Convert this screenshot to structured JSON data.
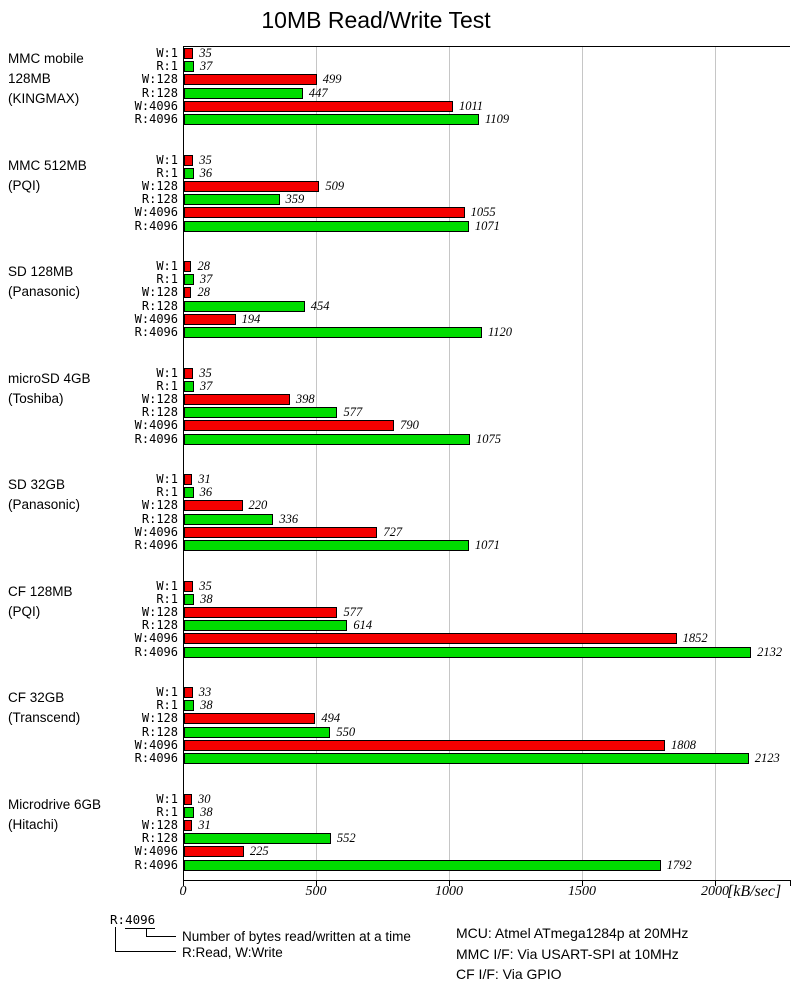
{
  "title": "10MB Read/Write Test",
  "chart_data": {
    "type": "bar",
    "title": "10MB Read/Write Test",
    "orientation": "horizontal",
    "xlabel": "[kB/sec]",
    "x_ticks": [
      0,
      500,
      1000,
      1500,
      2000
    ],
    "xlim": [
      0,
      2278
    ],
    "grid": true,
    "bar_labels": [
      "W:1",
      "R:1",
      "W:128",
      "R:128",
      "W:4096",
      "R:4096"
    ],
    "colors": {
      "write": "#f50000",
      "read": "#00dd00",
      "grid": "#c6c6c6",
      "axis": "#000000"
    },
    "groups": [
      {
        "name": "MMC mobile\n128MB\n(KINGMAX)",
        "values": [
          35,
          37,
          499,
          447,
          1011,
          1109
        ]
      },
      {
        "name": "MMC 512MB\n(PQI)",
        "values": [
          35,
          36,
          509,
          359,
          1055,
          1071
        ]
      },
      {
        "name": "SD 128MB\n(Panasonic)",
        "values": [
          28,
          37,
          28,
          454,
          194,
          1120
        ]
      },
      {
        "name": "microSD 4GB\n(Toshiba)",
        "values": [
          35,
          37,
          398,
          577,
          790,
          1075
        ]
      },
      {
        "name": "SD 32GB\n(Panasonic)",
        "values": [
          31,
          36,
          220,
          336,
          727,
          1071
        ]
      },
      {
        "name": "CF 128MB\n(PQI)",
        "values": [
          35,
          38,
          577,
          614,
          1852,
          2132
        ]
      },
      {
        "name": "CF 32GB\n(Transcend)",
        "values": [
          33,
          38,
          494,
          550,
          1808,
          2123
        ]
      },
      {
        "name": "Microdrive 6GB\n(Hitachi)",
        "values": [
          30,
          38,
          31,
          552,
          225,
          1792
        ]
      }
    ]
  },
  "legend": {
    "sample_prefix": "R:",
    "sample_underlined": "4096",
    "callout_size": "Number of bytes read/written at a time",
    "callout_rw": "R:Read, W:Write"
  },
  "notes": [
    "MCU: Atmel ATmega1284p at 20MHz",
    "MMC I/F: Via USART-SPI at 10MHz",
    "CF I/F: Via GPIO"
  ]
}
